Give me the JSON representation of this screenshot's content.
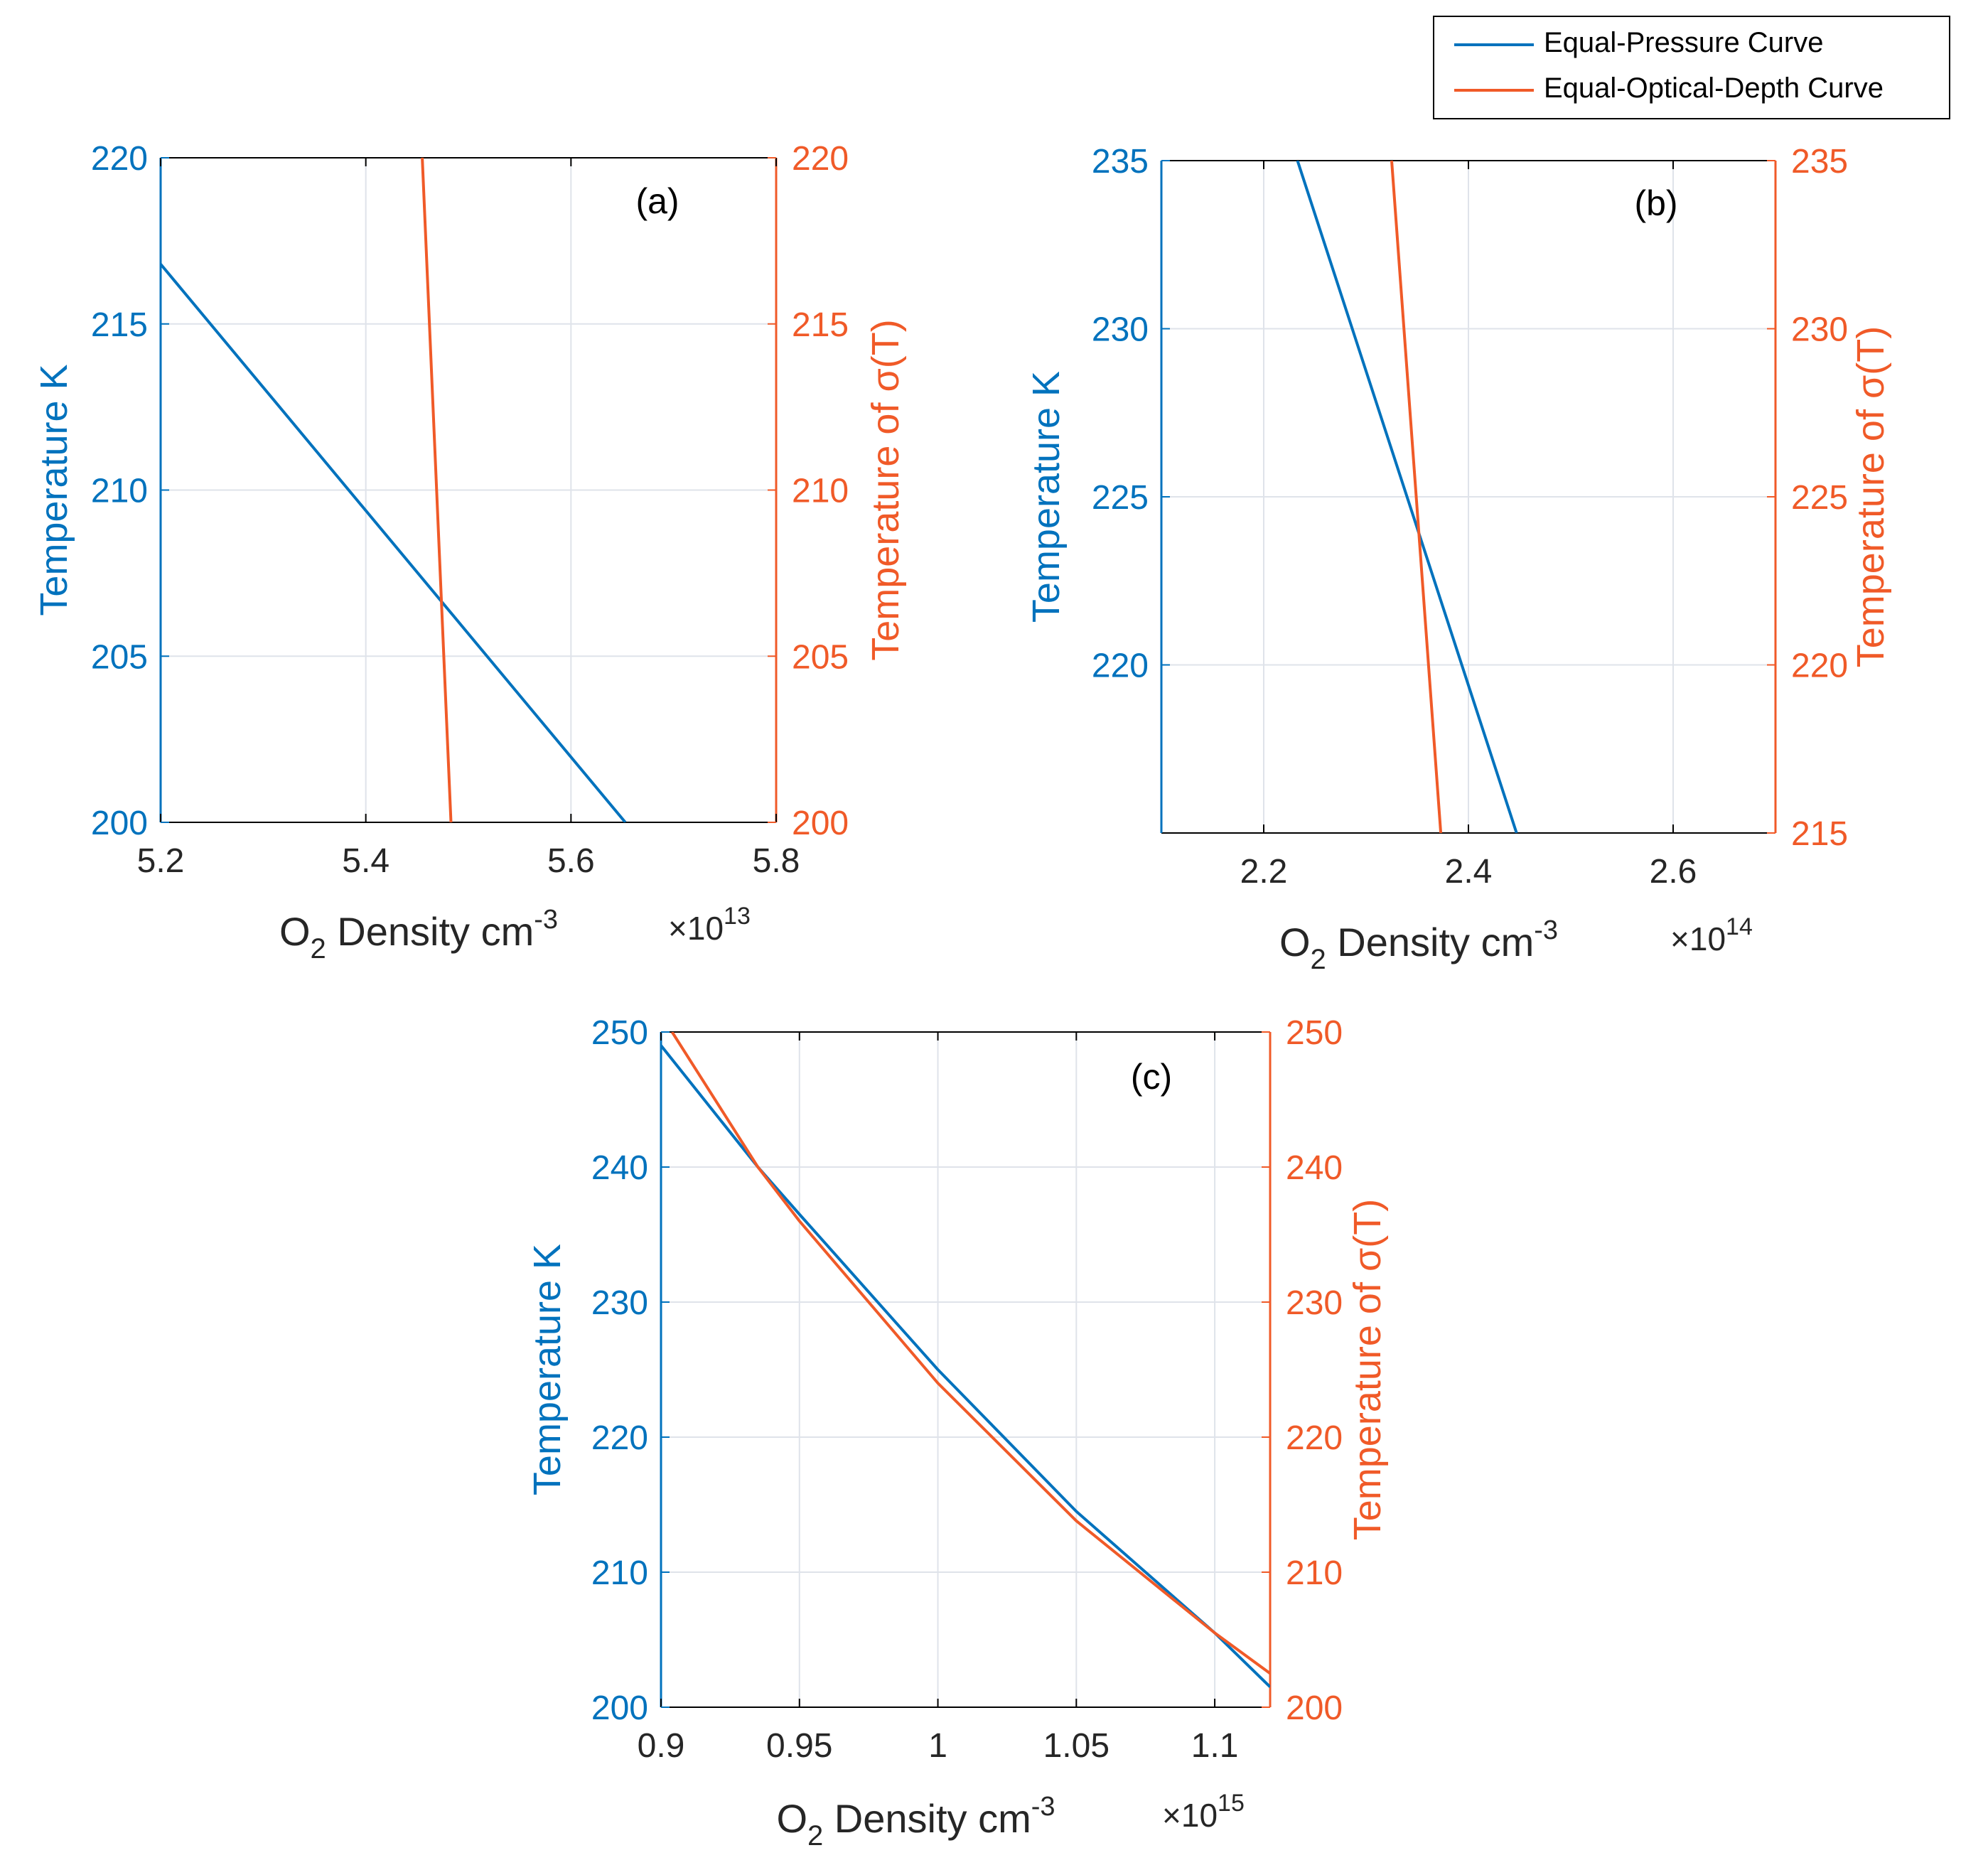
{
  "legend": {
    "entries": [
      {
        "label": "Equal-Pressure Curve",
        "color": "#0072BD"
      },
      {
        "label": "Equal-Optical-Depth Curve",
        "color": "#F05A28"
      }
    ]
  },
  "colors": {
    "left_axis": "#0072BD",
    "right_axis": "#F05A28",
    "grid": "#dfe3ea",
    "axis": "#000000"
  },
  "chart_data": [
    {
      "type": "line",
      "panel_label": "(a)",
      "xlabel_prefix": "O",
      "xlabel_sub": "2",
      "xlabel_main": " Density cm",
      "xlabel_sup": "-3",
      "x_multiplier": "×10",
      "x_multiplier_exp": "13",
      "xlim": [
        5.2,
        5.8
      ],
      "xticks": [
        5.2,
        5.4,
        5.6,
        5.8
      ],
      "xtick_labels": [
        "5.2",
        "5.4",
        "5.6",
        "5.8"
      ],
      "ylabel_left": "Temperature K",
      "ylabel_right": "Temperature of σ(T)",
      "ylim": [
        200,
        220
      ],
      "yticks": [
        200,
        205,
        210,
        215,
        220
      ],
      "ytick_labels": [
        "200",
        "205",
        "210",
        "215",
        "220"
      ],
      "series": [
        {
          "name": "Equal-Pressure Curve",
          "x": [
            5.2,
            5.653
          ],
          "y": [
            216.8,
            200
          ]
        },
        {
          "name": "Equal-Optical-Depth Curve",
          "x": [
            5.455,
            5.483
          ],
          "y": [
            220,
            200
          ]
        }
      ]
    },
    {
      "type": "line",
      "panel_label": "(b)",
      "xlabel_prefix": "O",
      "xlabel_sub": "2",
      "xlabel_main": " Density cm",
      "xlabel_sup": "-3",
      "x_multiplier": "×10",
      "x_multiplier_exp": "14",
      "xlim": [
        2.1,
        2.7
      ],
      "xticks": [
        2.2,
        2.4,
        2.6
      ],
      "xtick_labels": [
        "2.2",
        "2.4",
        "2.6"
      ],
      "ylabel_left": "Temperature K",
      "ylabel_right": "Temperature of σ(T)",
      "ylim": [
        215,
        235
      ],
      "yticks_left": [
        220,
        225,
        230,
        235
      ],
      "ytick_labels_left": [
        "220",
        "225",
        "230",
        "235"
      ],
      "yticks_right": [
        215,
        220,
        225,
        230,
        235
      ],
      "ytick_labels_right": [
        "215",
        "220",
        "225",
        "230",
        "235"
      ],
      "series": [
        {
          "name": "Equal-Pressure Curve",
          "x": [
            2.233,
            2.447
          ],
          "y": [
            235,
            215
          ]
        },
        {
          "name": "Equal-Optical-Depth Curve",
          "x": [
            2.325,
            2.373
          ],
          "y": [
            235,
            215
          ]
        }
      ]
    },
    {
      "type": "line",
      "panel_label": "(c)",
      "xlabel_prefix": "O",
      "xlabel_sub": "2",
      "xlabel_main": " Density cm",
      "xlabel_sup": "-3",
      "x_multiplier": "×10",
      "x_multiplier_exp": "15",
      "xlim": [
        0.9,
        1.12
      ],
      "xticks": [
        0.9,
        0.95,
        1.0,
        1.05,
        1.1
      ],
      "xtick_labels": [
        "0.9",
        "0.95",
        "1",
        "1.05",
        "1.1"
      ],
      "ylabel_left": "Temperature K",
      "ylabel_right": "Temperature of σ(T)",
      "ylim": [
        200,
        250
      ],
      "yticks": [
        200,
        210,
        220,
        230,
        240,
        250
      ],
      "ytick_labels": [
        "200",
        "210",
        "220",
        "230",
        "240",
        "250"
      ],
      "series": [
        {
          "name": "Equal-Pressure Curve",
          "x": [
            0.9,
            0.935,
            0.95,
            1.0,
            1.05,
            1.1,
            1.12
          ],
          "y": [
            249,
            240,
            236.5,
            225,
            214.5,
            205.5,
            201.5
          ]
        },
        {
          "name": "Equal-Optical-Depth Curve",
          "x": [
            0.904,
            0.935,
            0.95,
            1.0,
            1.05,
            1.1,
            1.12
          ],
          "y": [
            250,
            240,
            236,
            224,
            213.8,
            205.5,
            202.5
          ]
        }
      ]
    }
  ]
}
